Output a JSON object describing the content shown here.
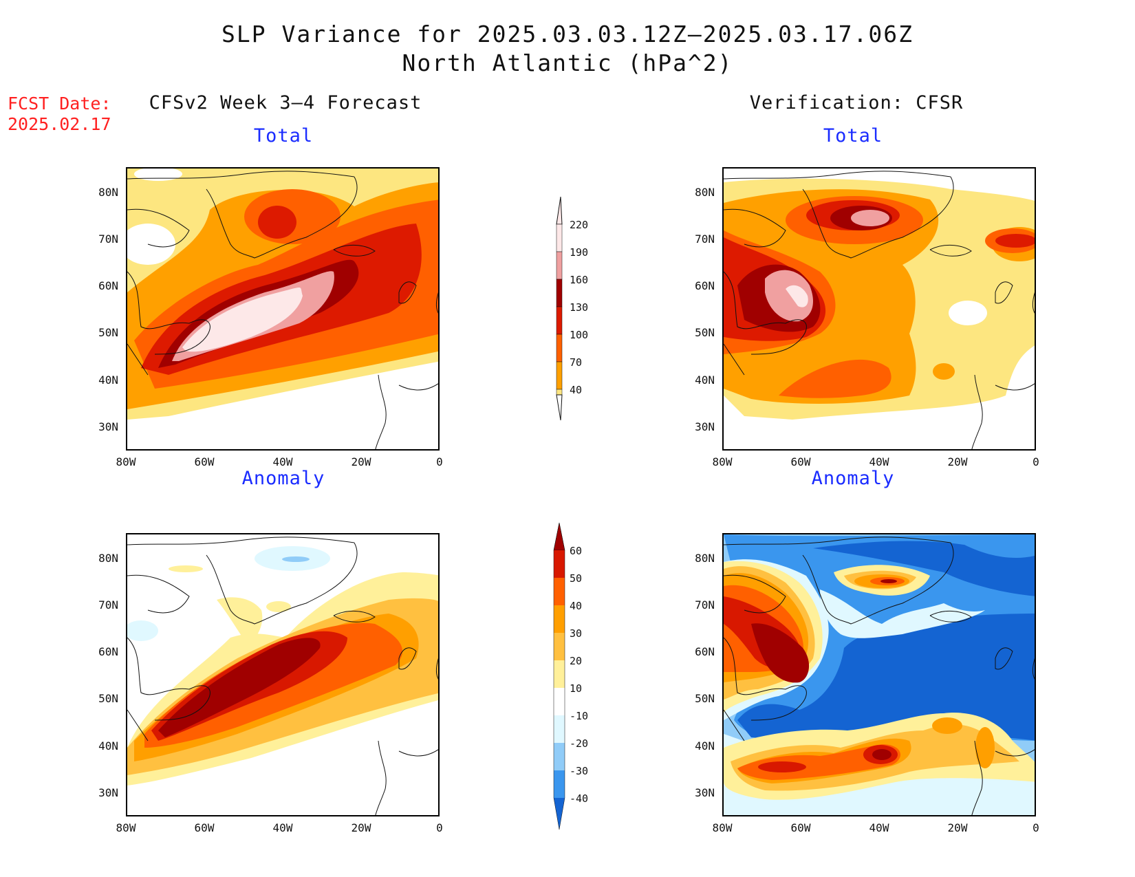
{
  "header": {
    "title_line1": "SLP Variance for 2025.03.03.12Z–2025.03.17.06Z",
    "title_line2": "North Atlantic (hPa^2)",
    "fcst_label": "FCST Date:",
    "fcst_date": "2025.02.17"
  },
  "columns": {
    "left": "CFSv2 Week 3–4 Forecast",
    "right": "Verification: CFSR"
  },
  "panels": {
    "forecast_total": "Total",
    "forecast_anomaly": "Anomaly",
    "verification_total": "Total",
    "verification_anomaly": "Anomaly"
  },
  "axes": {
    "lat_labels": [
      "80N",
      "70N",
      "60N",
      "50N",
      "40N",
      "30N"
    ],
    "lon_labels": [
      "80W",
      "60W",
      "40W",
      "20W",
      "0"
    ]
  },
  "colorbar_total": {
    "labels": [
      "220",
      "190",
      "160",
      "130",
      "100",
      "70",
      "40"
    ],
    "colors": [
      "#fde8e8",
      "#f0a0a0",
      "#a00000",
      "#dd1a00",
      "#ff6000",
      "#ffa000",
      "#fde680"
    ]
  },
  "colorbar_anomaly": {
    "labels": [
      "60",
      "50",
      "40",
      "30",
      "20",
      "10",
      "-10",
      "-20",
      "-30",
      "-40"
    ],
    "colors": [
      "#a00000",
      "#d81800",
      "#ff6000",
      "#ff9f00",
      "#ffc040",
      "#fff09a",
      "#ffffff",
      "#e0f8ff",
      "#90ccf8",
      "#3a96ee",
      "#1464d2"
    ]
  },
  "colors": {
    "title_text": "#111111",
    "panel_title": "#1a2cff",
    "fcst_text": "#ff2020"
  }
}
